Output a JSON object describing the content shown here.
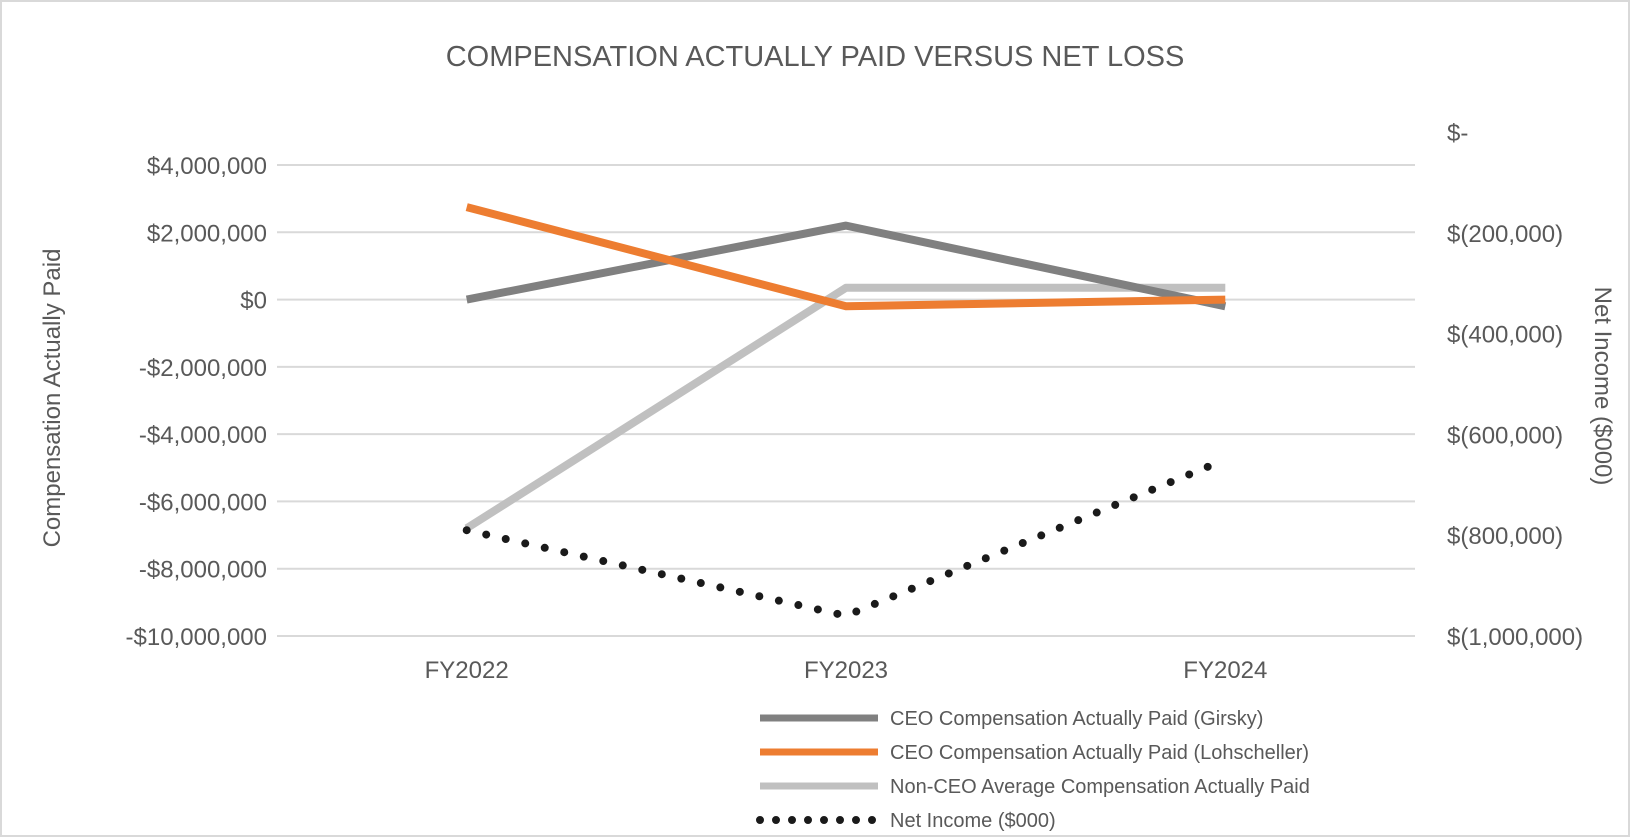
{
  "chart_data": {
    "type": "line",
    "title": "COMPENSATION ACTUALLY PAID VERSUS NET LOSS",
    "categories": [
      "FY2022",
      "FY2023",
      "FY2024"
    ],
    "ylabel": "Compensation Actually Paid",
    "y2label": "Net Income ($000)",
    "ylim": [
      -10000000,
      4000000
    ],
    "y2lim": [
      -1000000,
      0
    ],
    "yticks": [
      4000000,
      2000000,
      0,
      -2000000,
      -4000000,
      -6000000,
      -8000000,
      -10000000
    ],
    "ytick_labels": [
      "$4,000,000",
      "$2,000,000",
      "$0",
      "-$2,000,000",
      "-$4,000,000",
      "-$6,000,000",
      "-$8,000,000",
      "-$10,000,000"
    ],
    "y2ticks": [
      0,
      -200000,
      -400000,
      -600000,
      -800000,
      -1000000
    ],
    "y2tick_labels": [
      "$-",
      "$(200,000)",
      "$(400,000)",
      "$(600,000)",
      "$(800,000)",
      "$(1,000,000)"
    ],
    "grid": true,
    "legend_position": "bottom-right",
    "series": [
      {
        "name": "CEO Compensation Actually Paid (Girsky)",
        "axis": "left",
        "color": "#808080",
        "style": "solid",
        "values": [
          0,
          2200000,
          -200000
        ]
      },
      {
        "name": "CEO Compensation Actually Paid (Lohscheller)",
        "axis": "left",
        "color": "#ed7d31",
        "style": "solid",
        "values": [
          2750000,
          -200000,
          0
        ]
      },
      {
        "name": "Non-CEO Average Compensation Actually Paid",
        "axis": "left",
        "color": "#c0c0c0",
        "style": "solid",
        "values": [
          -6800000,
          350000,
          350000
        ]
      },
      {
        "name": "Net Income ($000)",
        "axis": "right",
        "color": "#1a1a1a",
        "style": "dotted",
        "values": [
          -790000,
          -960000,
          -650000
        ]
      }
    ]
  }
}
